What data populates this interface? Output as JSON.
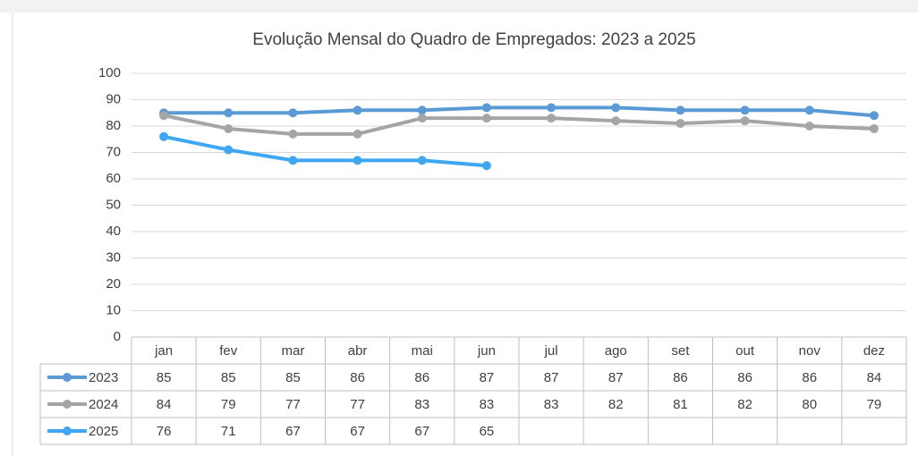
{
  "chart_data": {
    "type": "line",
    "title": "Evolução Mensal do Quadro de Empregados: 2023 a 2025",
    "categories": [
      "jan",
      "fev",
      "mar",
      "abr",
      "mai",
      "jun",
      "jul",
      "ago",
      "set",
      "out",
      "nov",
      "dez"
    ],
    "series": [
      {
        "name": "2023",
        "color": "#5b9bd5",
        "values": [
          85,
          85,
          85,
          86,
          86,
          87,
          87,
          87,
          86,
          86,
          86,
          84
        ]
      },
      {
        "name": "2024",
        "color": "#a5a5a5",
        "values": [
          84,
          79,
          77,
          77,
          83,
          83,
          83,
          82,
          81,
          82,
          80,
          79
        ]
      },
      {
        "name": "2025",
        "color": "#3fa6f2",
        "values": [
          76,
          71,
          67,
          67,
          67,
          65,
          null,
          null,
          null,
          null,
          null,
          null
        ]
      }
    ],
    "ylim": [
      0,
      100
    ],
    "yticks": [
      0,
      10,
      20,
      30,
      40,
      50,
      60,
      70,
      80,
      90,
      100
    ],
    "grid": true
  }
}
